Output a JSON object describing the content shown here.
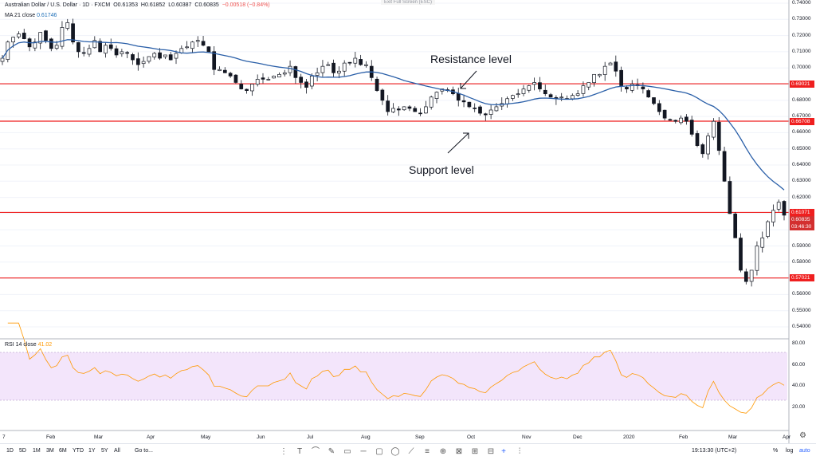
{
  "header": {
    "symbol": "Australian Dollar / U.S. Dollar · 1D · FXCM",
    "open": "O0.61353",
    "high": "H0.61852",
    "low": "L0.60387",
    "close": "C0.60835",
    "change": "−0.00518 (−0.84%)"
  },
  "indicators": {
    "ma_label": "MA 21 close",
    "ma_value": "0.61746",
    "rsi_label": "RSI 14 close",
    "rsi_value": "41.02"
  },
  "exit_fullscreen": "Exit Full Screen (ESC)",
  "annotations": {
    "resistance": "Resistance level",
    "support": "Support level"
  },
  "price_axis": [
    "0.74000",
    "0.73000",
    "0.72000",
    "0.71000",
    "0.70000",
    "0.69000",
    "0.68000",
    "0.67000",
    "0.66000",
    "0.65000",
    "0.64000",
    "0.63000",
    "0.62000",
    "0.61000",
    "0.60000",
    "0.59000",
    "0.58000",
    "0.57000",
    "0.56000",
    "0.55000",
    "0.54000"
  ],
  "rsi_axis": [
    "80.00",
    "60.00",
    "40.00",
    "20.00"
  ],
  "level_badges": [
    "0.69021",
    "0.66708",
    "0.61071",
    "0.60835",
    "03:46:30",
    "0.57021"
  ],
  "time_axis": [
    "7",
    "Feb",
    "Mar",
    "Apr",
    "May",
    "Jun",
    "Jul",
    "Aug",
    "Sep",
    "Oct",
    "Nov",
    "Dec",
    "2020",
    "Feb",
    "Mar",
    "Apr"
  ],
  "bottom": {
    "timeframes": [
      "1D",
      "5D",
      "1M",
      "3M",
      "6M",
      "YTD",
      "1Y",
      "5Y",
      "All"
    ],
    "goto": "Go to...",
    "time": "19:13:30 (UTC+2)",
    "percent": "%",
    "log": "log",
    "auto": "auto"
  },
  "colors": {
    "level_line": "#ef1f1f",
    "ma_line": "#2a5fa8",
    "rsi_line": "#ff9800",
    "rsi_band": "#f3e5fb",
    "candle": "#131722"
  },
  "chart_data": {
    "type": "candlestick",
    "symbol": "Australian Dollar / U.S. Dollar · 1D · FXCM",
    "ylim": [
      0.54,
      0.745
    ],
    "horizontal_levels": [
      0.69021,
      0.66708,
      0.61071,
      0.57021
    ],
    "ma_period": 21,
    "closes": [
      0.706,
      0.716,
      0.719,
      0.721,
      0.718,
      0.713,
      0.716,
      0.722,
      0.717,
      0.712,
      0.714,
      0.725,
      0.728,
      0.716,
      0.71,
      0.709,
      0.712,
      0.717,
      0.71,
      0.714,
      0.712,
      0.708,
      0.71,
      0.709,
      0.705,
      0.702,
      0.704,
      0.707,
      0.709,
      0.706,
      0.708,
      0.705,
      0.709,
      0.712,
      0.713,
      0.716,
      0.717,
      0.714,
      0.71,
      0.699,
      0.699,
      0.697,
      0.695,
      0.691,
      0.687,
      0.686,
      0.69,
      0.693,
      0.693,
      0.693,
      0.695,
      0.696,
      0.697,
      0.701,
      0.694,
      0.691,
      0.688,
      0.695,
      0.697,
      0.701,
      0.702,
      0.697,
      0.698,
      0.703,
      0.703,
      0.706,
      0.702,
      0.702,
      0.694,
      0.686,
      0.68,
      0.673,
      0.675,
      0.674,
      0.676,
      0.675,
      0.673,
      0.672,
      0.676,
      0.682,
      0.685,
      0.687,
      0.686,
      0.684,
      0.68,
      0.679,
      0.676,
      0.675,
      0.672,
      0.671,
      0.674,
      0.676,
      0.678,
      0.681,
      0.683,
      0.684,
      0.687,
      0.689,
      0.691,
      0.687,
      0.684,
      0.682,
      0.681,
      0.682,
      0.681,
      0.683,
      0.684,
      0.689,
      0.691,
      0.696,
      0.696,
      0.701,
      0.703,
      0.698,
      0.689,
      0.687,
      0.69,
      0.689,
      0.687,
      0.682,
      0.678,
      0.673,
      0.669,
      0.668,
      0.667,
      0.669,
      0.667,
      0.659,
      0.652,
      0.647,
      0.658,
      0.667,
      0.649,
      0.63,
      0.61,
      0.595,
      0.575,
      0.568,
      0.575,
      0.59,
      0.595,
      0.605,
      0.612,
      0.617,
      0.609
    ]
  }
}
